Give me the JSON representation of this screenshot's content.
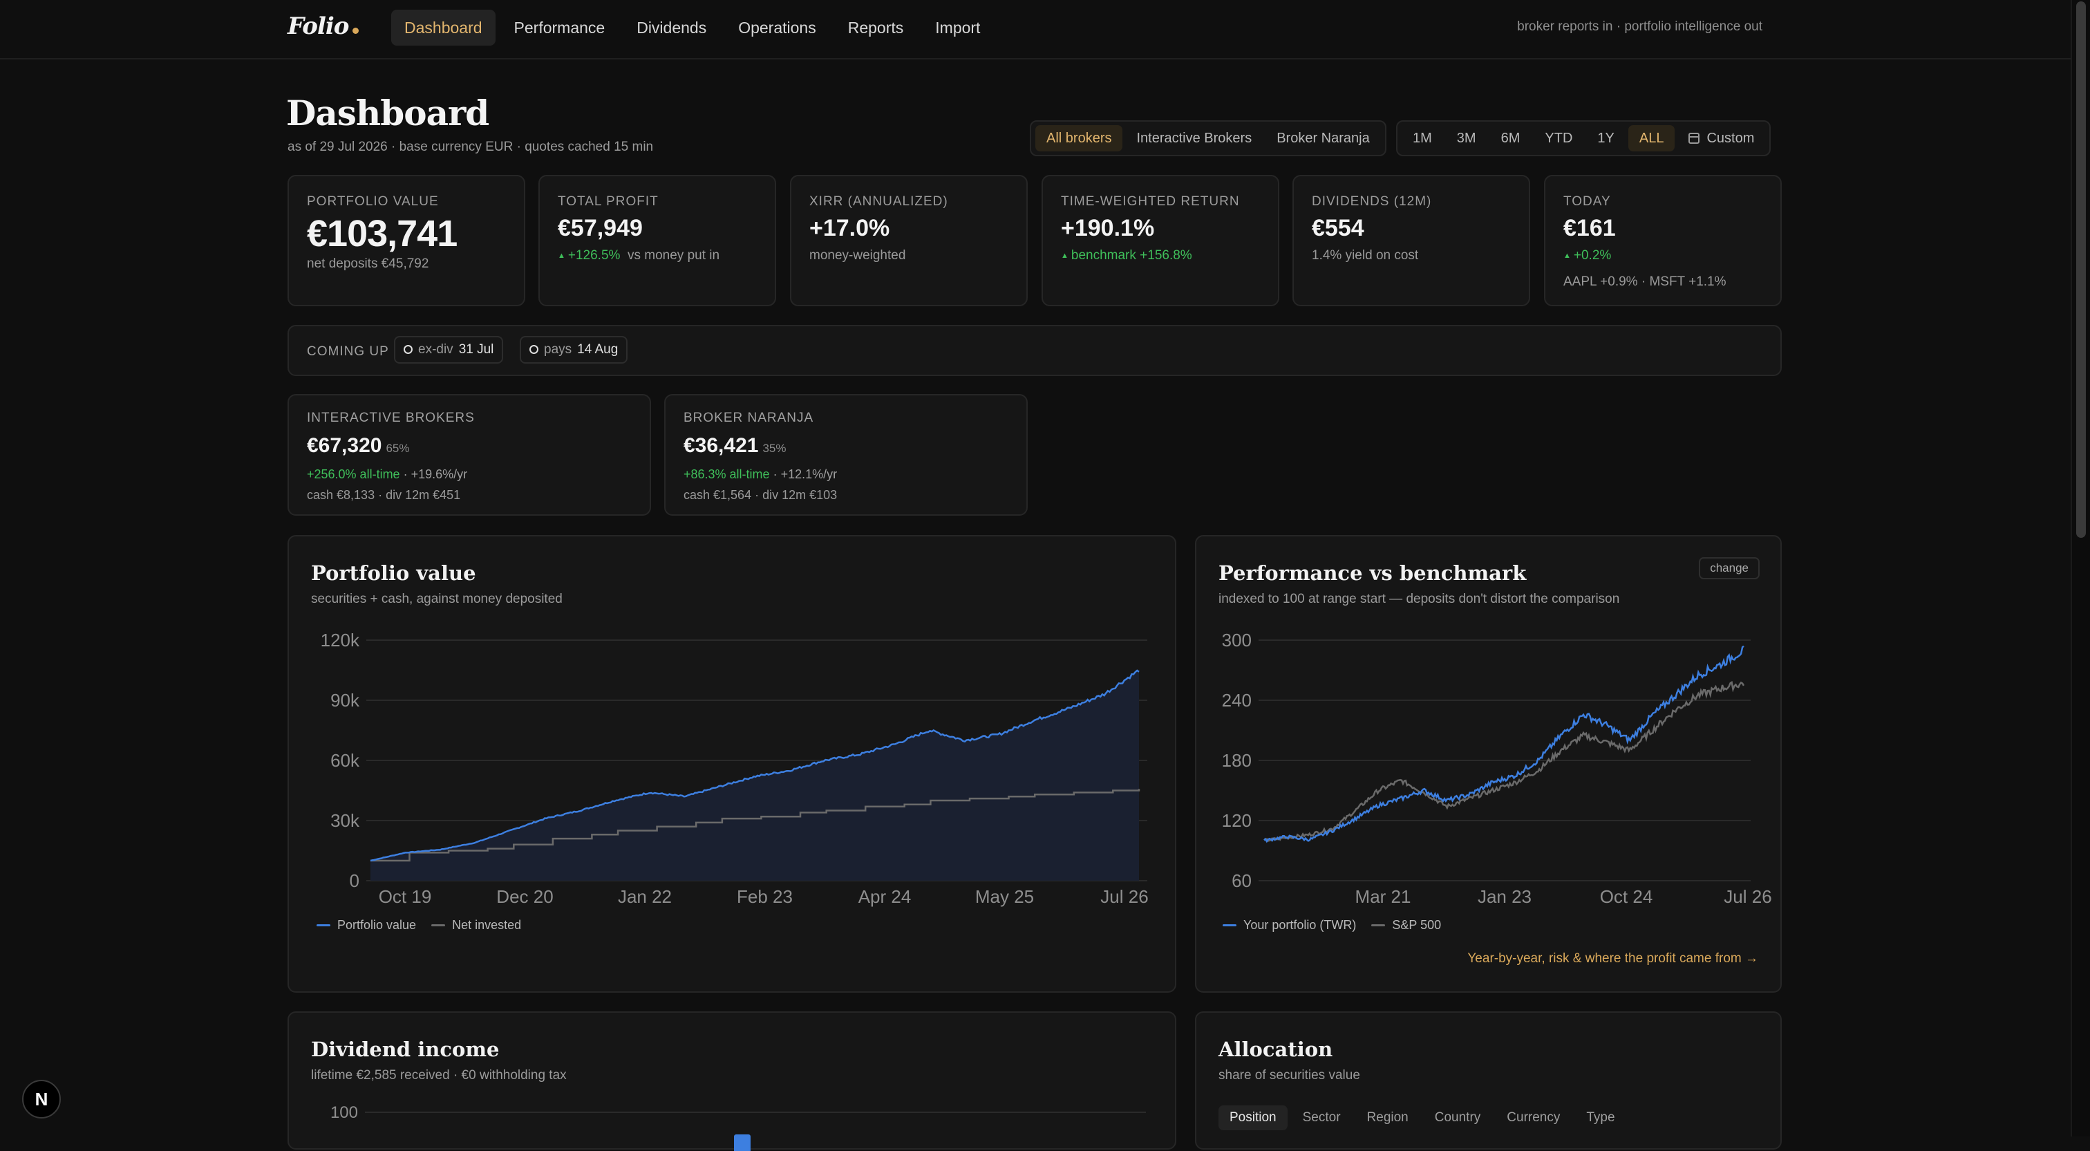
{
  "nav": {
    "logo": "Folio",
    "links": [
      "Dashboard",
      "Performance",
      "Dividends",
      "Operations",
      "Reports",
      "Import"
    ],
    "tagline": "broker reports in · portfolio intelligence out"
  },
  "header": {
    "title": "Dashboard",
    "subtitle": "as of 29 Jul 2026 · base currency EUR · quotes cached 15 min",
    "broker_filter": [
      "All brokers",
      "Interactive Brokers",
      "Broker Naranja"
    ],
    "ranges": [
      "1M",
      "3M",
      "6M",
      "YTD",
      "1Y",
      "ALL"
    ],
    "custom_label": "Custom"
  },
  "kpis": [
    {
      "label": "PORTFOLIO VALUE",
      "value": "€103,741",
      "sub": "net deposits €45,792"
    },
    {
      "label": "TOTAL PROFIT",
      "value": "€57,949",
      "change": "+126.5%",
      "sub": "vs money put in"
    },
    {
      "label": "XIRR (ANNUALIZED)",
      "value": "+17.0%",
      "sub": "money-weighted"
    },
    {
      "label": "TIME-WEIGHTED RETURN",
      "value": "+190.1%",
      "change": "benchmark +156.8%"
    },
    {
      "label": "DIVIDENDS (12M)",
      "value": "€554",
      "sub": "1.4% yield on cost"
    },
    {
      "label": "TODAY",
      "value": "€161",
      "change": "+0.2%",
      "sub": "AAPL +0.9% · MSFT +1.1%"
    }
  ],
  "coming_up": {
    "label": "COMING UP",
    "events": [
      {
        "kind": "ex-div",
        "date": "31 Jul"
      },
      {
        "kind": "pays",
        "date": "14 Aug"
      }
    ]
  },
  "brokers": [
    {
      "name": "INTERACTIVE BROKERS",
      "value": "€67,320",
      "share": "65%",
      "return": "+256.0% all-time",
      "annual": "· +19.6%/yr",
      "detail": "cash €8,133 · div 12m €451"
    },
    {
      "name": "BROKER NARANJA",
      "value": "€36,421",
      "share": "35%",
      "return": "+86.3% all-time",
      "annual": "· +12.1%/yr",
      "detail": "cash €1,564 · div 12m €103"
    }
  ],
  "portfolio_chart": {
    "title": "Portfolio value",
    "subtitle": "securities + cash, against money deposited",
    "legend": [
      "Portfolio value",
      "Net invested"
    ]
  },
  "benchmark_chart": {
    "title": "Performance vs benchmark",
    "subtitle": "indexed to 100 at range start — deposits don't distort the comparison",
    "change_label": "change",
    "legend": [
      "Your portfolio (TWR)",
      "S&P 500"
    ],
    "link": "Year-by-year, risk & where the profit came from →"
  },
  "dividend_chart": {
    "title": "Dividend income",
    "subtitle": "lifetime €2,585 received · €0 withholding tax",
    "first_tick": "100"
  },
  "allocation": {
    "title": "Allocation",
    "subtitle": "share of securities value",
    "tabs": [
      "Position",
      "Sector",
      "Region",
      "Country",
      "Currency",
      "Type"
    ]
  },
  "colors": {
    "accent": "#d9a85a",
    "portfolio_line": "#3d7fe0",
    "benchmark_line": "#6a6a6a",
    "positive": "#3fbf5a"
  },
  "chart_data": [
    {
      "type": "area",
      "x_ticks": [
        "Oct 19",
        "Dec 20",
        "Jan 22",
        "Feb 23",
        "Apr 24",
        "May 25",
        "Jul 26"
      ],
      "y_ticks": [
        "0",
        "30k",
        "60k",
        "90k",
        "120k"
      ],
      "ylim": [
        0,
        120000
      ],
      "series": [
        {
          "name": "Portfolio value",
          "values": [
            10000,
            14000,
            15500,
            19000,
            25000,
            31000,
            35000,
            40000,
            44000,
            42000,
            47000,
            52000,
            55000,
            60000,
            63000,
            68000,
            75000,
            70000,
            73000,
            80000,
            86000,
            93000,
            105000
          ]
        },
        {
          "name": "Net invested",
          "values": [
            10000,
            14000,
            15000,
            16000,
            18000,
            21000,
            23000,
            25000,
            27000,
            29000,
            31000,
            32000,
            34000,
            35000,
            37000,
            38000,
            40000,
            41000,
            42000,
            43000,
            44000,
            45000,
            45800
          ]
        }
      ]
    },
    {
      "type": "line",
      "x_ticks": [
        "Mar 21",
        "Jan 23",
        "Oct 24",
        "Jul 26"
      ],
      "y_ticks": [
        "60",
        "120",
        "180",
        "240",
        "300"
      ],
      "ylim": [
        60,
        300
      ],
      "series": [
        {
          "name": "Your portfolio (TWR)",
          "values": [
            100,
            104,
            101,
            110,
            122,
            135,
            142,
            150,
            140,
            146,
            158,
            165,
            180,
            205,
            226,
            215,
            200,
            225,
            245,
            265,
            276,
            290
          ]
        },
        {
          "name": "S&P 500",
          "values": [
            100,
            103,
            106,
            112,
            130,
            150,
            160,
            148,
            134,
            142,
            150,
            158,
            170,
            190,
            205,
            198,
            190,
            210,
            230,
            245,
            252,
            257
          ]
        }
      ]
    }
  ]
}
